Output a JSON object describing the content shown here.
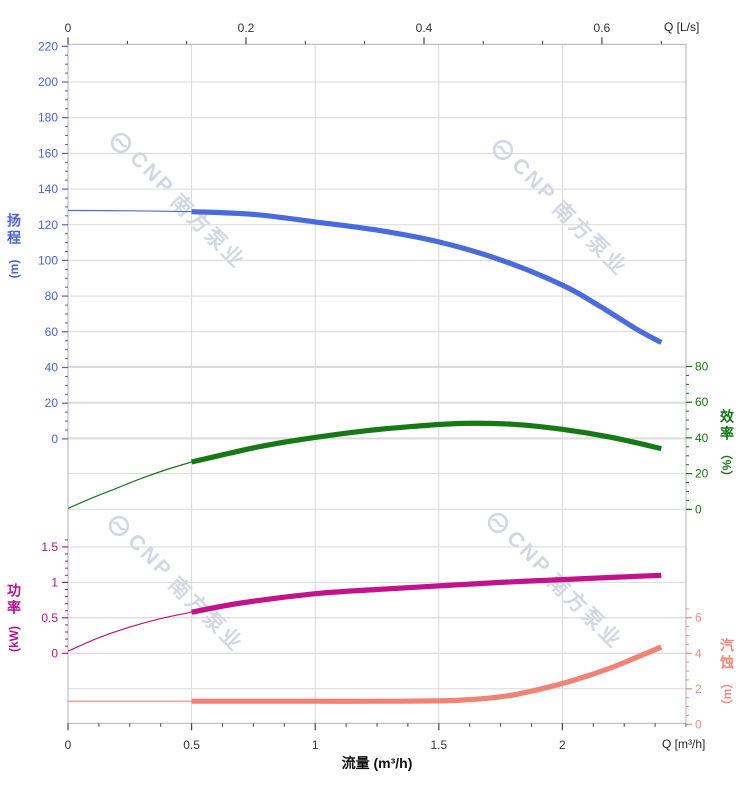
{
  "chart_data": {
    "type": "line",
    "title": "",
    "x_bottom": {
      "axis_title": "流量 (m³/h)",
      "corner_label": "Q [m³/h]",
      "unit": "m³/h",
      "major_ticks": [
        0,
        0.5,
        1,
        1.5,
        2
      ],
      "minor_step": 0.125,
      "max": 2.5
    },
    "x_top": {
      "corner_label": "Q [L/s]",
      "unit": "L/s",
      "major_ticks": [
        0,
        0.2,
        0.4,
        0.6
      ],
      "minor_divisions": 3,
      "max": 0.6944,
      "ls_per_m3h": 0.27778
    },
    "y_axes": {
      "head": {
        "title": "扬程",
        "unit": "(m)",
        "side": "left",
        "color": "#4b63d2",
        "major_ticks": [
          0,
          20,
          40,
          60,
          80,
          100,
          120,
          140,
          160,
          180,
          200,
          220
        ],
        "minor_step": 5,
        "minor_max": 220
      },
      "efficiency": {
        "title": "效率",
        "unit": "（%）",
        "side": "right",
        "color": "#157515",
        "major_ticks": [
          0,
          20,
          40,
          60,
          80
        ],
        "minor_step": 5,
        "minor_max": 80
      },
      "power": {
        "title": "功率",
        "unit": "(kW)",
        "side": "left",
        "color": "#b3128d",
        "major_ticks": [
          0,
          0.5,
          1,
          1.5
        ],
        "minor_step": 0.1,
        "minor_max": 1.6
      },
      "npsh": {
        "title": "汽蚀",
        "unit": "（m）",
        "side": "right",
        "color": "#f5897e",
        "major_ticks": [
          0,
          2,
          4,
          6
        ],
        "minor_step": 0.5,
        "minor_max": 6.5
      }
    },
    "series": [
      {
        "name": "head",
        "label": "扬程",
        "axis": "head",
        "color": "#4a6bdb",
        "thin_until": 0.5,
        "points": [
          [
            0,
            128
          ],
          [
            0.25,
            127.8
          ],
          [
            0.5,
            127.3
          ],
          [
            0.75,
            125.8
          ],
          [
            1,
            121.6
          ],
          [
            1.25,
            117
          ],
          [
            1.5,
            110.4
          ],
          [
            1.75,
            100.3
          ],
          [
            2,
            86.2
          ],
          [
            2.15,
            74.5
          ],
          [
            2.3,
            61.5
          ],
          [
            2.4,
            54
          ]
        ]
      },
      {
        "name": "efficiency",
        "label": "效率",
        "axis": "efficiency",
        "color": "#177817",
        "thin_until": 0.5,
        "points": [
          [
            0,
            0.5
          ],
          [
            0.1,
            6.5
          ],
          [
            0.2,
            12
          ],
          [
            0.3,
            17.5
          ],
          [
            0.4,
            22.3
          ],
          [
            0.5,
            26.5
          ],
          [
            0.65,
            31.3
          ],
          [
            0.8,
            35.8
          ],
          [
            1,
            40.3
          ],
          [
            1.2,
            43.9
          ],
          [
            1.4,
            46.5
          ],
          [
            1.6,
            48.1
          ],
          [
            1.8,
            47.6
          ],
          [
            2,
            44.8
          ],
          [
            2.2,
            40.3
          ],
          [
            2.4,
            34
          ]
        ]
      },
      {
        "name": "power",
        "label": "功率",
        "axis": "power",
        "color": "#c2138c",
        "thin_until": 0.5,
        "points": [
          [
            0,
            0.03
          ],
          [
            0.125,
            0.22
          ],
          [
            0.25,
            0.37
          ],
          [
            0.375,
            0.49
          ],
          [
            0.5,
            0.58
          ],
          [
            0.7,
            0.71
          ],
          [
            1,
            0.84
          ],
          [
            1.25,
            0.9
          ],
          [
            1.5,
            0.95
          ],
          [
            1.75,
            1
          ],
          [
            2,
            1.04
          ],
          [
            2.2,
            1.07
          ],
          [
            2.4,
            1.1
          ]
        ]
      },
      {
        "name": "npsh",
        "label": "汽蚀",
        "axis": "npsh",
        "color": "#f28273",
        "thin_until": 0.5,
        "points": [
          [
            0,
            1.3
          ],
          [
            0.5,
            1.3
          ],
          [
            0.75,
            1.3
          ],
          [
            1,
            1.3
          ],
          [
            1.25,
            1.3
          ],
          [
            1.5,
            1.32
          ],
          [
            1.6,
            1.37
          ],
          [
            1.7,
            1.47
          ],
          [
            1.8,
            1.65
          ],
          [
            1.9,
            1.95
          ],
          [
            2,
            2.3
          ],
          [
            2.1,
            2.72
          ],
          [
            2.2,
            3.2
          ],
          [
            2.3,
            3.77
          ],
          [
            2.4,
            4.35
          ]
        ]
      }
    ],
    "grid": "on",
    "colors": {
      "grid": "#d9d9d9",
      "axis_line": "#b0b0b0",
      "tick_text": "#333333"
    }
  },
  "watermark": {
    "brand": "CNP",
    "text_cn": "南方泵业"
  }
}
